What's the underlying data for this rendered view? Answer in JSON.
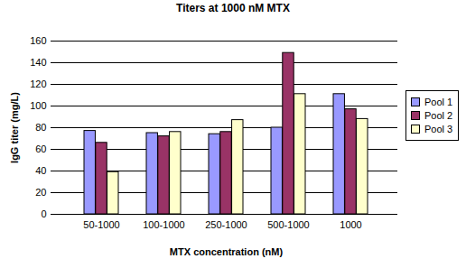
{
  "chart_data": {
    "type": "bar",
    "title": "Titers at 1000 nM MTX",
    "x_label": "MTX concentration (nM)",
    "y_label": "IgG titer (mg/L)",
    "categories": [
      "50-1000",
      "100-1000",
      "250-1000",
      "500-1000",
      "1000"
    ],
    "series": [
      {
        "name": "Pool 1",
        "color": "#9999ff",
        "values": [
          77,
          75,
          74,
          80,
          111
        ]
      },
      {
        "name": "Pool 2",
        "color": "#993366",
        "values": [
          66,
          72,
          76,
          149,
          97
        ]
      },
      {
        "name": "Pool 3",
        "color": "#ffffcc",
        "values": [
          39,
          76,
          87,
          111,
          88
        ]
      }
    ],
    "ylim": [
      0,
      160
    ],
    "yticks": [
      0,
      20,
      40,
      60,
      80,
      100,
      120,
      140,
      160
    ],
    "grid": true,
    "legend": "right"
  }
}
